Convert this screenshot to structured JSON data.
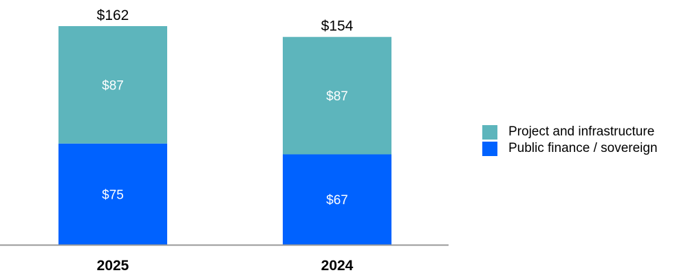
{
  "chart_data": {
    "type": "bar",
    "stacked": true,
    "categories": [
      "2025",
      "2024"
    ],
    "series": [
      {
        "name": "Public finance / sovereign",
        "values": [
          75,
          67
        ],
        "color": "#0062FF",
        "labels": [
          "$75",
          "$67"
        ]
      },
      {
        "name": "Project and infrastructure",
        "values": [
          87,
          87
        ],
        "color": "#5DB5BC",
        "labels": [
          "$87",
          "$87"
        ]
      }
    ],
    "totals": [
      162,
      154
    ],
    "total_labels": [
      "$162",
      "$154"
    ],
    "ylim": [
      0,
      162
    ],
    "grid": false,
    "legend_placement": "right",
    "legend": [
      {
        "label": "Project and infrastructure",
        "color": "#5DB5BC"
      },
      {
        "label": "Public finance / sovereign",
        "color": "#0062FF"
      }
    ],
    "axis_color": "#999999"
  }
}
